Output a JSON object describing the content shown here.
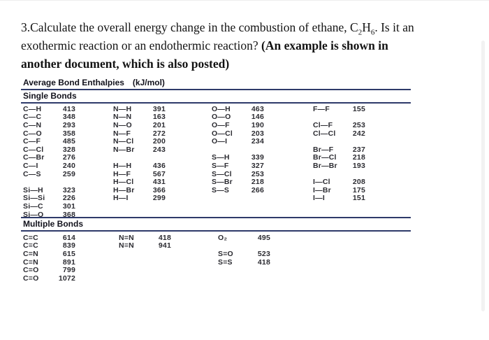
{
  "question": {
    "line1_pre": "3.Calculate the overall energy change in the combustion of ethane, C",
    "line1_sub1": "2",
    "line1_mid": "H",
    "line1_sub2": "6",
    "line1_post": ". Is it an",
    "line2_normal": "exothermic reaction or an endothermic reaction? ",
    "line2_bold": "(An example is shown in",
    "line3_bold": "another document, which is also posted)"
  },
  "table": {
    "title": "Average Bond Enthalpies",
    "units": "(kJ/mol)",
    "sections": [
      {
        "heading": "Single Bonds",
        "columns": [
          {
            "rows": [
              [
                "C—H",
                "413"
              ],
              [
                "C—C",
                "348"
              ],
              [
                "C—N",
                "293"
              ],
              [
                "C—O",
                "358"
              ],
              [
                "C—F",
                "485"
              ],
              [
                "C—Cl",
                "328"
              ],
              [
                "C—Br",
                "276"
              ],
              [
                "C—I",
                "240"
              ],
              [
                "C—S",
                "259"
              ],
              null,
              [
                "Si—H",
                "323"
              ],
              [
                "Si—Si",
                "226"
              ],
              [
                "Si—C",
                "301"
              ],
              [
                "Si—O",
                "368"
              ]
            ]
          },
          {
            "rows": [
              [
                "N—H",
                "391"
              ],
              [
                "N—N",
                "163"
              ],
              [
                "N—O",
                "201"
              ],
              [
                "N—F",
                "272"
              ],
              [
                "N—Cl",
                "200"
              ],
              [
                "N—Br",
                "243"
              ],
              null,
              [
                "H—H",
                "436"
              ],
              [
                "H—F",
                "567"
              ],
              [
                "H—Cl",
                "431"
              ],
              [
                "H—Br",
                "366"
              ],
              [
                "H—I",
                "299"
              ]
            ]
          },
          {
            "rows": [
              [
                "O—H",
                "463"
              ],
              [
                "O—O",
                "146"
              ],
              [
                "O—F",
                "190"
              ],
              [
                "O—Cl",
                "203"
              ],
              [
                "O—I",
                "234"
              ],
              null,
              [
                "S—H",
                "339"
              ],
              [
                "S—F",
                "327"
              ],
              [
                "S—Cl",
                "253"
              ],
              [
                "S—Br",
                "218"
              ],
              [
                "S—S",
                "266"
              ]
            ]
          },
          {
            "rows": [
              [
                "F—F",
                "155"
              ],
              null,
              [
                "Cl—F",
                "253"
              ],
              [
                "Cl—Cl",
                "242"
              ],
              null,
              [
                "Br—F",
                "237"
              ],
              [
                "Br—Cl",
                "218"
              ],
              [
                "Br—Br",
                "193"
              ],
              null,
              [
                "I—Cl",
                "208"
              ],
              [
                "I—Br",
                "175"
              ],
              [
                "I—I",
                "151"
              ]
            ]
          }
        ]
      },
      {
        "heading": "Multiple Bonds",
        "columns": [
          {
            "rows": [
              [
                "C=C",
                "614"
              ],
              [
                "C≡C",
                "839"
              ],
              [
                "C=N",
                "615"
              ],
              [
                "C≡N",
                "891"
              ],
              [
                "C=O",
                "799"
              ],
              [
                "C≡O",
                "1072"
              ]
            ]
          },
          {
            "rows": [
              [
                "N=N",
                "418"
              ],
              [
                "N≡N",
                "941"
              ]
            ]
          },
          {
            "rows": [
              [
                "O₂",
                "495"
              ],
              null,
              [
                "S=O",
                "523"
              ],
              [
                "S=S",
                "418"
              ]
            ]
          },
          {
            "rows": []
          }
        ]
      }
    ]
  },
  "colors": {
    "rule_navy": "#2e3a6a",
    "text_dark": "#2b2b31",
    "background": "#ffffff"
  }
}
